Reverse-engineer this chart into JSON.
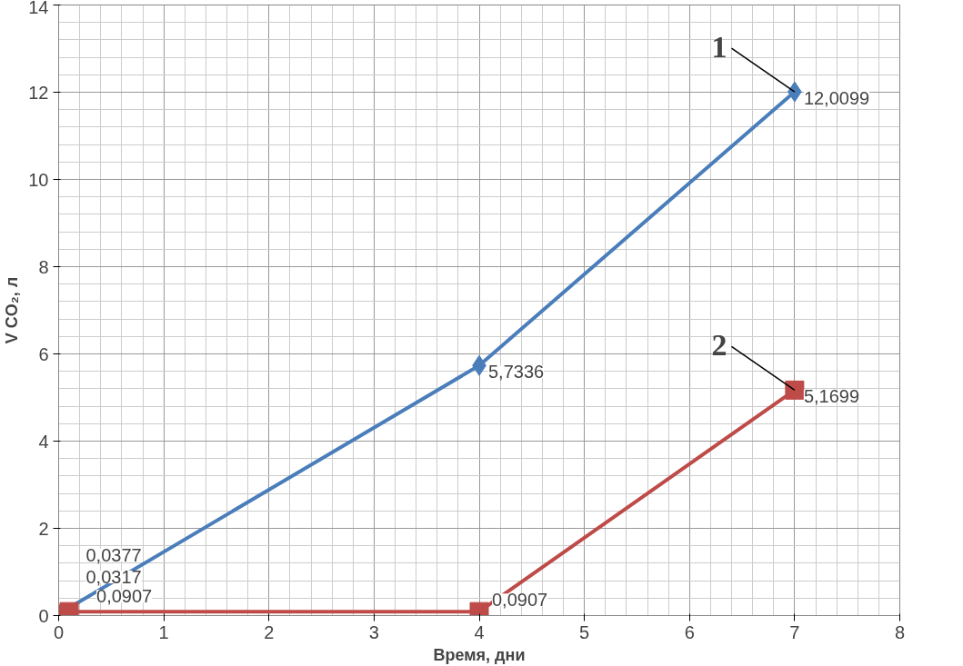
{
  "chart_data": {
    "type": "line",
    "xlabel": "Время, дни",
    "ylabel": "V CO₂, л",
    "xlim": [
      0,
      8
    ],
    "xticks": [
      0,
      1,
      2,
      3,
      4,
      5,
      6,
      7,
      8
    ],
    "ylim": [
      0,
      14
    ],
    "yticks": [
      0,
      2,
      4,
      6,
      8,
      10,
      12,
      14
    ],
    "grid": true,
    "series": [
      {
        "color": "#4a7ebb",
        "marker": "diamond",
        "x": [
          0,
          4,
          7
        ],
        "values": [
          0.0377,
          5.7336,
          12.0099
        ],
        "value_labels": [
          "0,0377",
          "5,7336",
          "12,0099"
        ]
      },
      {
        "color": "#be4b48",
        "marker": "square",
        "x": [
          0,
          0.1,
          4,
          7
        ],
        "values": [
          0.0317,
          0.0907,
          0.0907,
          5.1699
        ],
        "value_labels": [
          "0,0317",
          "0,0907",
          "0,0907",
          "5,1699"
        ]
      }
    ],
    "annotations": [
      {
        "text": "1",
        "x": 7,
        "y": 12.0099
      },
      {
        "text": "2",
        "x": 7,
        "y": 5.1699
      }
    ]
  }
}
